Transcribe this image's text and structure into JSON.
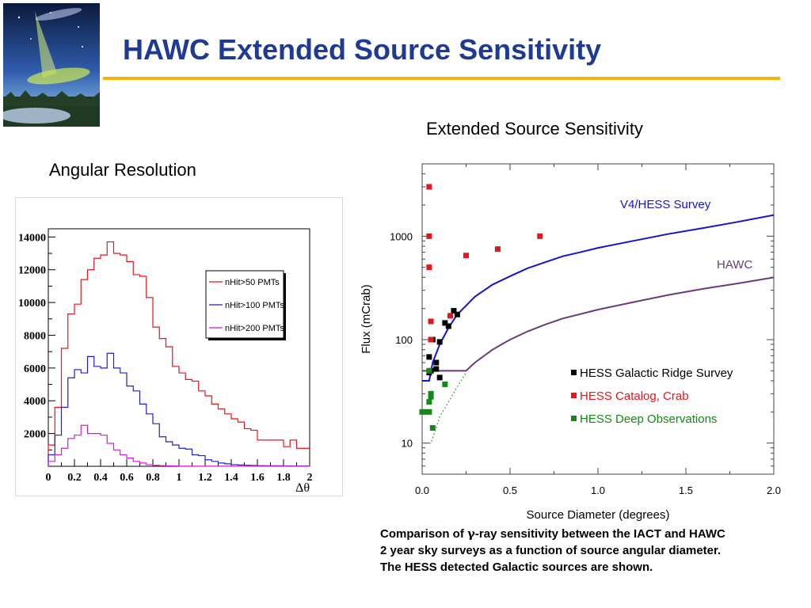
{
  "slide": {
    "title": "HAWC Extended Source Sensitivity",
    "left_caption": "Angular Resolution",
    "right_caption": "Extended Source Sensitivity",
    "note_lines": [
      [
        "Comparison of ",
        "γ",
        "-ray sensitivity between the IACT and HAWC"
      ],
      [
        "2 year sky surveys as a function of source angular diameter."
      ],
      [
        "The HESS detected Galactic sources are shown."
      ]
    ]
  },
  "colors": {
    "title": "#1f3a93",
    "rule": "#f2b705",
    "red": "#e8141b",
    "blue": "#1f1fcf",
    "magenta": "#d11cd1",
    "v4hess": "#1414d0",
    "hawc": "#6a3a78",
    "black": "#000000",
    "green": "#138a13"
  },
  "chart_data": [
    {
      "type": "line",
      "title": "",
      "xlabel": "Δθ",
      "ylabel": "",
      "xlim": [
        0,
        2
      ],
      "ylim": [
        0,
        14500
      ],
      "x_ticks": [
        "0",
        "0.2",
        "0.4",
        "0.6",
        "0.8",
        "1",
        "1.2",
        "1.4",
        "1.6",
        "1.8",
        "2"
      ],
      "y_ticks": [
        "2000",
        "4000",
        "6000",
        "8000",
        "10000",
        "12000",
        "14000"
      ],
      "legend_position": "top-right",
      "bin_width": 0.05,
      "series": [
        {
          "name": "nHit>50 PMTs",
          "color": "#e8141b",
          "values": [
            1300,
            3600,
            7200,
            9300,
            9900,
            11400,
            12000,
            12700,
            12900,
            13700,
            13000,
            12900,
            12500,
            11700,
            11600,
            10300,
            8500,
            7800,
            7300,
            6100,
            5700,
            5300,
            5200,
            4600,
            4300,
            3800,
            3500,
            3200,
            2900,
            2700,
            2300,
            2200,
            1600,
            1600,
            1600,
            1600,
            1200,
            1600,
            1100,
            1100
          ]
        },
        {
          "name": "nHit>100 PMTs",
          "color": "#1f1fcf",
          "values": [
            700,
            1900,
            3600,
            5400,
            5900,
            5700,
            6700,
            6100,
            6000,
            6900,
            6000,
            5700,
            4900,
            4600,
            3800,
            3200,
            2600,
            1800,
            1500,
            1300,
            1100,
            1050,
            700,
            650,
            400,
            300,
            200,
            150,
            100,
            80,
            60,
            50,
            40,
            30,
            30,
            30,
            20,
            20,
            20,
            20
          ]
        },
        {
          "name": "nHit>200 PMTs",
          "color": "#d11cd1",
          "values": [
            300,
            700,
            1100,
            1700,
            1900,
            2500,
            2000,
            2000,
            1900,
            1400,
            1000,
            700,
            500,
            300,
            200,
            100,
            60,
            40,
            30,
            20,
            10,
            10,
            10,
            5,
            5,
            5,
            5,
            5,
            5,
            5,
            5,
            5,
            5,
            5,
            5,
            5,
            5,
            5,
            5,
            5
          ]
        }
      ]
    },
    {
      "type": "scatter",
      "title": "",
      "xlabel": "Source Diameter (degrees)",
      "ylabel": "Flux (mCrab)",
      "xlim": [
        0,
        2
      ],
      "ylim": [
        5,
        5000
      ],
      "yscale": "log",
      "x_ticks": [
        "0.0",
        "0.5",
        "1.0",
        "1.5",
        "2.0"
      ],
      "y_ticks": [
        "10",
        "100",
        "1000"
      ],
      "grid": false,
      "legend_position": "bottom-right",
      "curves": [
        {
          "label": "V4/HESS Survey",
          "color": "#1414d0",
          "points": [
            [
              0,
              40
            ],
            [
              0.04,
              40
            ],
            [
              0.06,
              60
            ],
            [
              0.1,
              90
            ],
            [
              0.15,
              130
            ],
            [
              0.2,
              175
            ],
            [
              0.3,
              260
            ],
            [
              0.4,
              340
            ],
            [
              0.5,
              410
            ],
            [
              0.6,
              490
            ],
            [
              0.7,
              560
            ],
            [
              0.8,
              640
            ],
            [
              0.9,
              700
            ],
            [
              1.0,
              770
            ],
            [
              1.2,
              900
            ],
            [
              1.4,
              1050
            ],
            [
              1.6,
              1200
            ],
            [
              1.8,
              1380
            ],
            [
              2.0,
              1600
            ]
          ]
        },
        {
          "label": "HAWC",
          "color": "#6a3a78",
          "points": [
            [
              0,
              50
            ],
            [
              0.1,
              50
            ],
            [
              0.15,
              50
            ],
            [
              0.2,
              50
            ],
            [
              0.25,
              50
            ],
            [
              0.3,
              60
            ],
            [
              0.4,
              80
            ],
            [
              0.5,
              100
            ],
            [
              0.6,
              120
            ],
            [
              0.7,
              140
            ],
            [
              0.8,
              160
            ],
            [
              1.0,
              195
            ],
            [
              1.2,
              230
            ],
            [
              1.4,
              270
            ],
            [
              1.6,
              310
            ],
            [
              1.8,
              350
            ],
            [
              2.0,
              400
            ]
          ]
        },
        {
          "label": "",
          "color": "#138a13",
          "dotted": true,
          "points": [
            [
              0,
              10
            ],
            [
              0.05,
              10
            ],
            [
              0.08,
              14
            ],
            [
              0.1,
              18
            ],
            [
              0.15,
              25
            ],
            [
              0.2,
              35
            ],
            [
              0.25,
              48
            ]
          ]
        }
      ],
      "series": [
        {
          "name": "HESS Galactic Ridge Survey",
          "color": "#000000",
          "points": [
            [
              0.04,
              48
            ],
            [
              0.04,
              68
            ],
            [
              0.05,
              50
            ],
            [
              0.06,
              100
            ],
            [
              0.08,
              52
            ],
            [
              0.08,
              60
            ],
            [
              0.1,
              43
            ],
            [
              0.1,
              95
            ],
            [
              0.13,
              145
            ],
            [
              0.15,
              135
            ],
            [
              0.18,
              190
            ],
            [
              0.2,
              175
            ]
          ]
        },
        {
          "name": "HESS Catalog, Crab",
          "color": "#e8141b",
          "points": [
            [
              0.04,
              3000
            ],
            [
              0.04,
              1000
            ],
            [
              0.04,
              500
            ],
            [
              0.05,
              150
            ],
            [
              0.05,
              100
            ],
            [
              0.16,
              170
            ],
            [
              0.25,
              650
            ],
            [
              0.43,
              750
            ],
            [
              0.67,
              1000
            ]
          ]
        },
        {
          "name": "HESS Deep Observations",
          "color": "#138a13",
          "points": [
            [
              0.0,
              20
            ],
            [
              0.02,
              20
            ],
            [
              0.04,
              20
            ],
            [
              0.04,
              25
            ],
            [
              0.05,
              28
            ],
            [
              0.05,
              30
            ],
            [
              0.04,
              50
            ],
            [
              0.06,
              14
            ],
            [
              0.13,
              37
            ]
          ]
        }
      ]
    }
  ]
}
